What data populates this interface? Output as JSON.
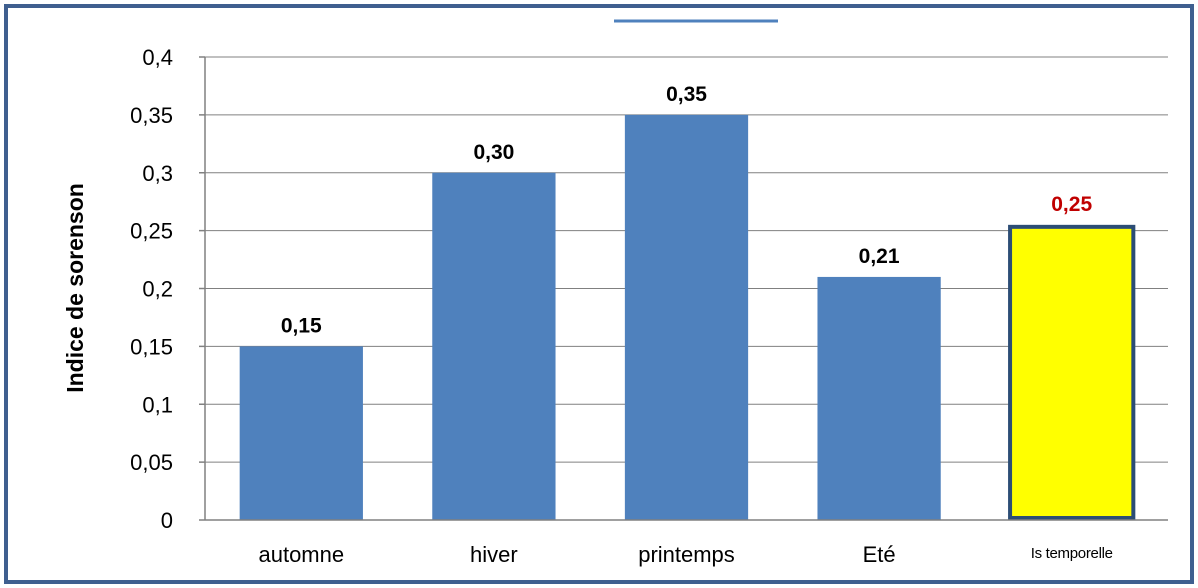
{
  "chart_data": {
    "type": "bar",
    "categories": [
      "automne",
      "hiver",
      "printemps",
      "Eté",
      "Is temporelle"
    ],
    "values": [
      0.15,
      0.3,
      0.35,
      0.21,
      0.255
    ],
    "data_labels": [
      "0,15",
      "0,30",
      "0,35",
      "0,21",
      "0,25"
    ],
    "ylabel": "Indice de sorenson",
    "xlabel": "",
    "title": "",
    "ylim": [
      0,
      0.4
    ],
    "yticks": [
      0,
      0.05,
      0.1,
      0.15,
      0.2,
      0.25,
      0.3,
      0.35,
      0.4
    ],
    "ytick_labels": [
      "0",
      "0,05",
      "0,1",
      "0,15",
      "0,2",
      "0,25",
      "0,3",
      "0,35",
      "0,4"
    ],
    "grid": "horizontal",
    "legend": "none",
    "colors": {
      "bar": "#4F81BD",
      "highlight_bar": "#FFFF00",
      "highlight_border": "#2C4D75",
      "highlight_label": "#C00000",
      "label": "#000000",
      "frame_border": "#3F5F8F",
      "gridline": "#808080"
    },
    "highlight_index": 4
  }
}
